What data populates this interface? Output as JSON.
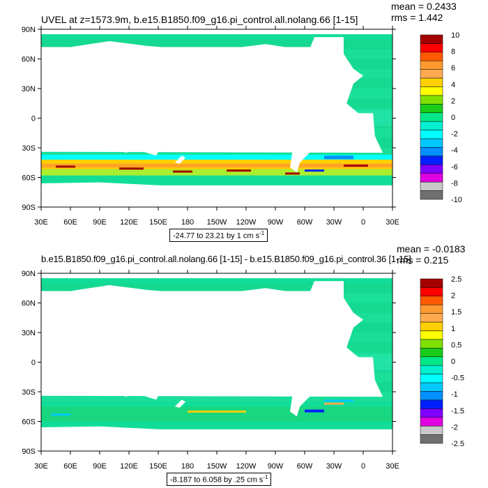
{
  "panels": [
    {
      "title": "UVEL at z=1573.9m, b.e15.B1850.f09_g16.pi_control.all.nolang.66 [1-15]",
      "mean": "mean = 0.2433",
      "rms": "rms = 1.442",
      "range_prefix": "-24.77 to 23.21 by 1 cm s",
      "range_exp": "-1",
      "colorbar_labels": [
        "10",
        "8",
        "6",
        "4",
        "2",
        "0",
        "-2",
        "-4",
        "-6",
        "-8",
        "-10"
      ]
    },
    {
      "title": "b.e15.B1850.f09_g16.pi_control.all.nolang.66 [1-15] - b.e15.B1850.f09_g16.pi_control.36 [1-15]",
      "mean": "mean = -0.0183",
      "rms": "rms = 0.215",
      "range_prefix": "-8.187 to 6.058 by .25 cm s",
      "range_exp": "-1",
      "colorbar_labels": [
        "2.5",
        "2",
        "1.5",
        "1",
        "0.5",
        "0",
        "-0.5",
        "-1",
        "-1.5",
        "-2",
        "-2.5"
      ]
    }
  ],
  "lat_labels": [
    "90N",
    "60N",
    "30N",
    "0",
    "30S",
    "60S",
    "90S"
  ],
  "lon_labels": [
    "30E",
    "60E",
    "90E",
    "120E",
    "150E",
    "180",
    "150W",
    "120W",
    "90W",
    "60W",
    "30W",
    "0",
    "30E"
  ],
  "colorbar_colors": [
    "#a50000",
    "#ff0000",
    "#ff5a00",
    "#ff9a30",
    "#ffaa50",
    "#ffd000",
    "#ffff00",
    "#80e000",
    "#19cc19",
    "#00e888",
    "#00f0d0",
    "#00ffff",
    "#00c8ff",
    "#0090ff",
    "#0020ff",
    "#8000ff",
    "#e000e0",
    "#c8c8c8",
    "#707070"
  ]
}
